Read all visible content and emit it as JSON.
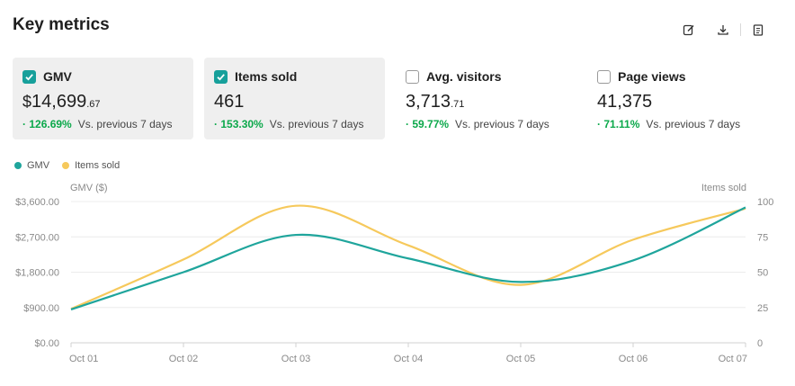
{
  "header": {
    "title": "Key metrics"
  },
  "toolbar": {
    "icons": [
      "edit-icon",
      "download-icon",
      "clipboard-icon"
    ]
  },
  "metrics": [
    {
      "label": "GMV",
      "checked": true,
      "currency": "$",
      "whole": "14,699",
      "decimal": ".67",
      "delta": "126.69%",
      "note": "Vs. previous 7 days"
    },
    {
      "label": "Items sold",
      "checked": true,
      "currency": "",
      "whole": "461",
      "decimal": "",
      "delta": "153.30%",
      "note": "Vs. previous 7 days"
    },
    {
      "label": "Avg. visitors",
      "checked": false,
      "currency": "",
      "whole": "3,713",
      "decimal": ".71",
      "delta": "59.77%",
      "note": "Vs. previous 7 days"
    },
    {
      "label": "Page views",
      "checked": false,
      "currency": "",
      "whole": "41,375",
      "decimal": "",
      "delta": "71.11%",
      "note": "Vs. previous 7 days"
    }
  ],
  "colors": {
    "gmv": "#1fa59c",
    "items": "#f6c95c",
    "positive": "#0ba84a",
    "accent": "#17a09b"
  },
  "chart_data": {
    "type": "line",
    "x": [
      "Oct 01",
      "Oct 02",
      "Oct 03",
      "Oct 04",
      "Oct 05",
      "Oct 06",
      "Oct 07"
    ],
    "series": [
      {
        "name": "GMV",
        "axis": "left",
        "values": [
          850,
          1800,
          2750,
          2150,
          1550,
          2100,
          3450
        ]
      },
      {
        "name": "Items sold",
        "axis": "right",
        "values": [
          24,
          59,
          97,
          69,
          41,
          73,
          95
        ]
      }
    ],
    "ylabel": "GMV ($)",
    "y2label": "Items sold",
    "ylim": [
      0,
      3600
    ],
    "y2lim": [
      0,
      100
    ],
    "yticks": [
      "$0.00",
      "$900.00",
      "$1,800.00",
      "$2,700.00",
      "$3,600.00"
    ],
    "y2ticks": [
      "0",
      "25",
      "50",
      "75",
      "100"
    ],
    "grid": true,
    "legend": "top-left"
  }
}
